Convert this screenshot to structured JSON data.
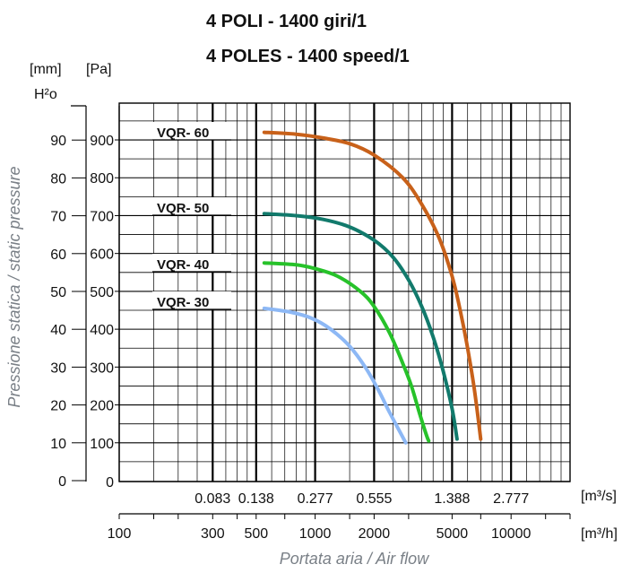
{
  "chart_data": {
    "type": "line",
    "title": "4 POLI - 1400 giri/1",
    "subtitle": "4 POLES  - 1400 speed/1",
    "ylabel": "Pressione statica / static pressure",
    "xlabel": "Portata aria / Air flow",
    "y_units": {
      "mm": "[mm]",
      "pa": "[Pa]",
      "h2o": "H²o"
    },
    "x_units": {
      "m3s": "[m³/s]",
      "m3h": "[m³/h]"
    },
    "x_scale": "log",
    "xlim": [
      100,
      20000
    ],
    "ylim": [
      0,
      1000
    ],
    "grid": true,
    "y_ticks_pa": [
      "100",
      "200",
      "300",
      "400",
      "500",
      "600",
      "700",
      "800",
      "900"
    ],
    "y_ticks_mm": [
      "0",
      "10",
      "20",
      "30",
      "40",
      "50",
      "60",
      "70",
      "80",
      "90"
    ],
    "y_ticks_pa_bottom": "0",
    "x_ticks_m3h": [
      "100",
      "300",
      "500",
      "1000",
      "2000",
      "5000",
      "10000"
    ],
    "x_ticks_m3s": [
      "0.083",
      "0.138",
      "0.277",
      "0.555",
      "1.388",
      "2.777"
    ],
    "series": [
      {
        "name": "VQR- 60",
        "color": "#c8611a",
        "x": [
          550,
          800,
          1100,
          1500,
          2000,
          2800,
          3500,
          4300,
          5000,
          5500,
          6000,
          6500,
          7000
        ],
        "y": [
          920,
          915,
          905,
          890,
          860,
          800,
          730,
          640,
          540,
          450,
          350,
          240,
          110
        ]
      },
      {
        "name": "VQR- 50",
        "color": "#127a6c",
        "x": [
          550,
          800,
          1100,
          1500,
          2000,
          2500,
          3000,
          3500,
          4000,
          4500,
          5000,
          5300
        ],
        "y": [
          705,
          700,
          690,
          670,
          635,
          590,
          530,
          460,
          380,
          290,
          190,
          110
        ]
      },
      {
        "name": "VQR- 40",
        "color": "#27c22a",
        "x": [
          550,
          800,
          1000,
          1300,
          1700,
          2000,
          2400,
          2800,
          3100,
          3400,
          3700,
          3800
        ],
        "y": [
          575,
          570,
          560,
          540,
          500,
          460,
          390,
          310,
          250,
          180,
          120,
          105
        ]
      },
      {
        "name": "VQR- 30",
        "color": "#8db8f5",
        "x": [
          550,
          750,
          950,
          1200,
          1500,
          1800,
          2100,
          2400,
          2700,
          2900
        ],
        "y": [
          455,
          445,
          430,
          400,
          355,
          300,
          240,
          180,
          130,
          100
        ]
      }
    ]
  }
}
